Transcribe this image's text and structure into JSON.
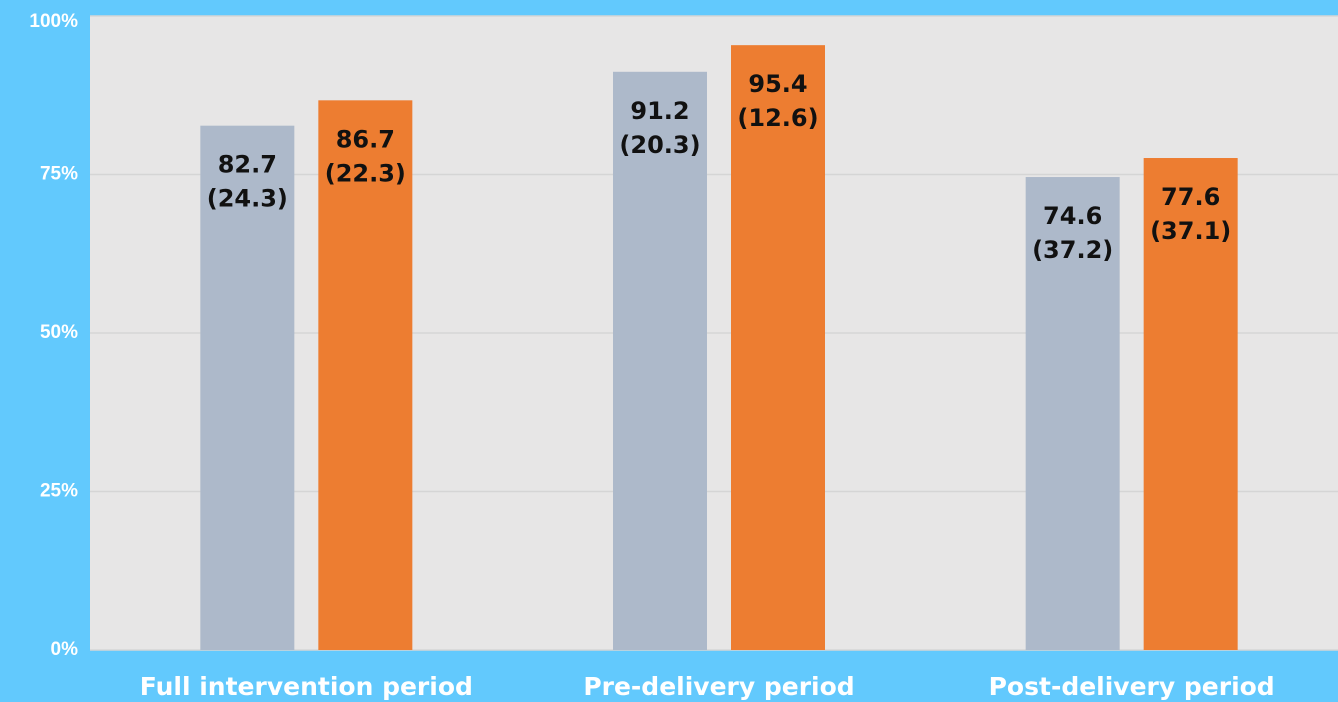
{
  "chart_data": {
    "type": "bar",
    "categories": [
      "Full intervention period",
      "Pre-delivery period",
      "Post-delivery period"
    ],
    "series": [
      {
        "color": "#adb9ca",
        "values": [
          82.7,
          91.2,
          74.6
        ],
        "error_labels": [
          "(24.3)",
          "(20.3)",
          "(37.2)"
        ]
      },
      {
        "color": "#ed7d31",
        "values": [
          86.7,
          95.4,
          77.6
        ],
        "error_labels": [
          "(22.3)",
          "(12.6)",
          "(37.1)"
        ]
      }
    ],
    "ylim": [
      0,
      100
    ],
    "yticks": [
      {
        "value": 0,
        "label": "0%"
      },
      {
        "value": 25,
        "label": "25%"
      },
      {
        "value": 50,
        "label": "50%"
      },
      {
        "value": 75,
        "label": "75%"
      },
      {
        "value": 100,
        "label": "100%"
      }
    ],
    "grid": true
  }
}
